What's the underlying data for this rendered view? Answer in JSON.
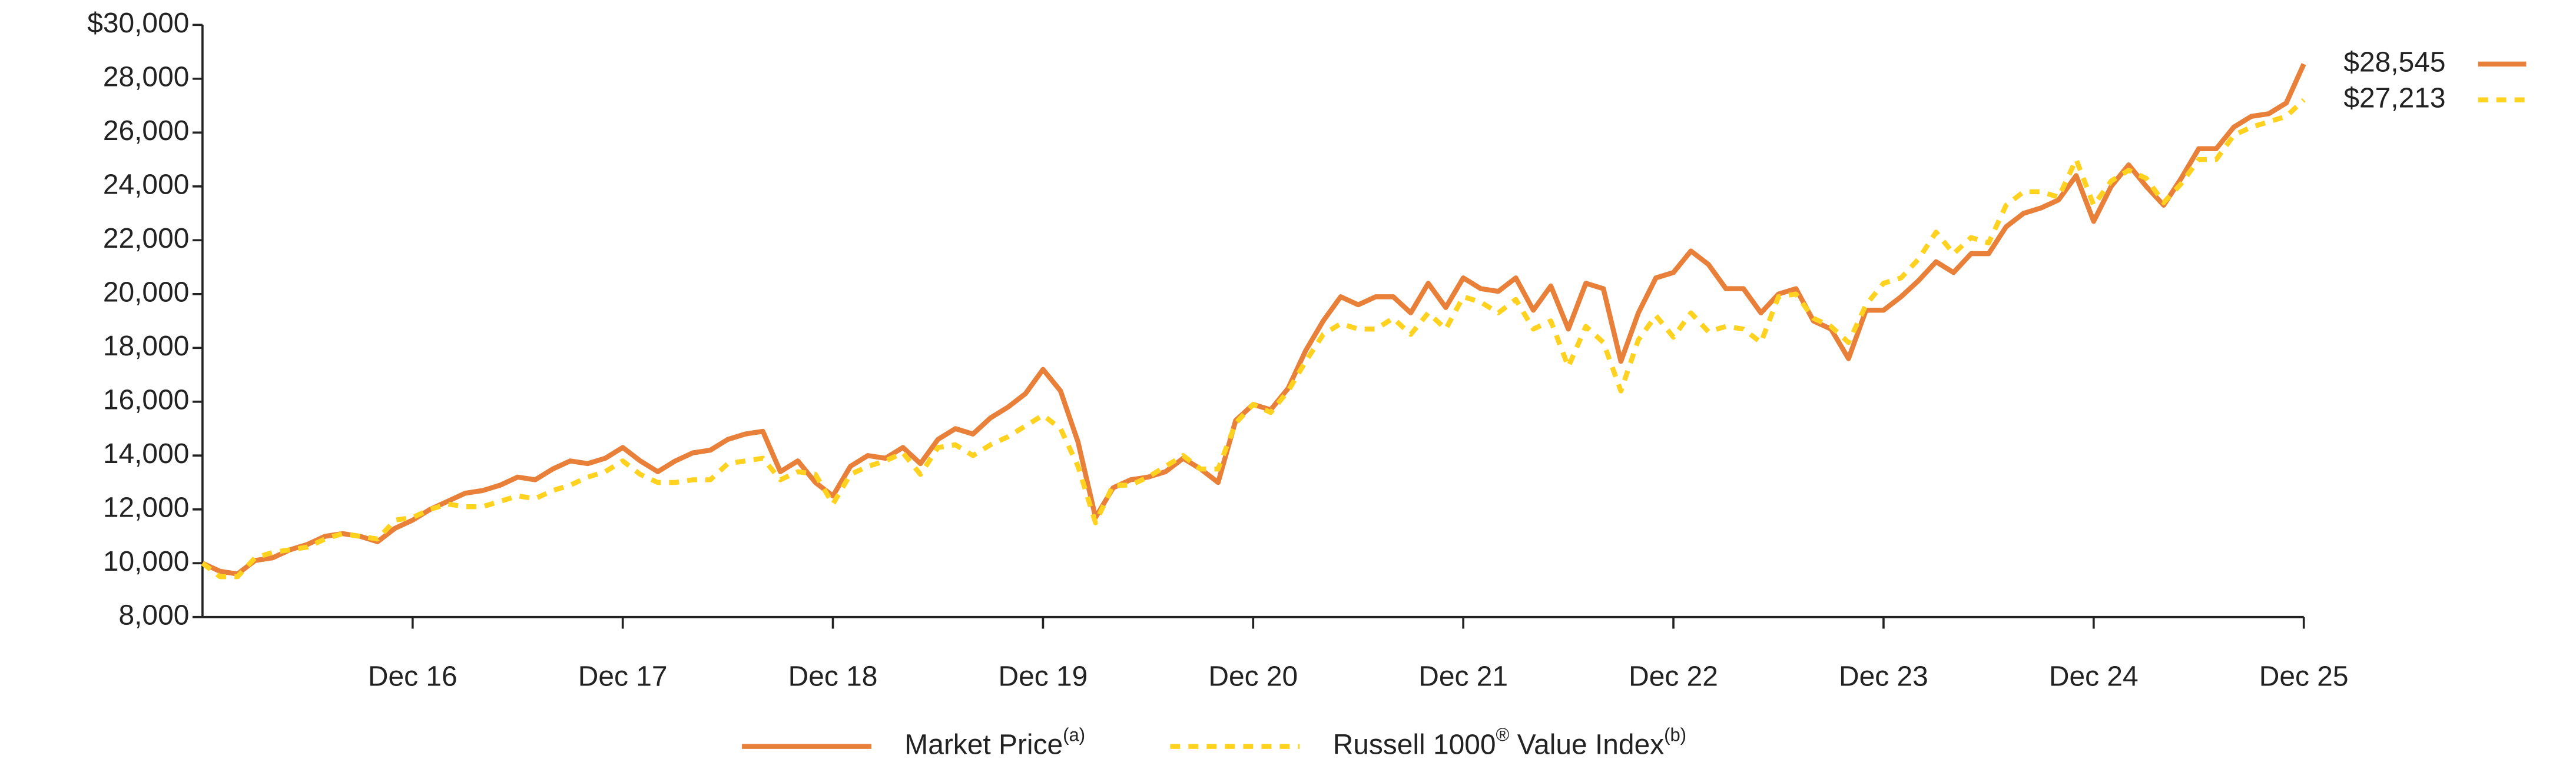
{
  "chart_data": {
    "type": "line",
    "categories": [
      null,
      null,
      null,
      null,
      null,
      null,
      null,
      null,
      null,
      null,
      null,
      null,
      "Dec 16",
      null,
      null,
      null,
      null,
      null,
      null,
      null,
      null,
      null,
      null,
      null,
      "Dec 17",
      null,
      null,
      null,
      null,
      null,
      null,
      null,
      null,
      null,
      null,
      null,
      "Dec 18",
      null,
      null,
      null,
      null,
      null,
      null,
      null,
      null,
      null,
      null,
      null,
      "Dec 19",
      null,
      null,
      null,
      null,
      null,
      null,
      null,
      null,
      null,
      null,
      null,
      "Dec 20",
      null,
      null,
      null,
      null,
      null,
      null,
      null,
      null,
      null,
      null,
      null,
      "Dec 21",
      null,
      null,
      null,
      null,
      null,
      null,
      null,
      null,
      null,
      null,
      null,
      "Dec 22",
      null,
      null,
      null,
      null,
      null,
      null,
      null,
      null,
      null,
      null,
      null,
      "Dec 23",
      null,
      null,
      null,
      null,
      null,
      null,
      null,
      null,
      null,
      null,
      null,
      "Dec 24",
      null,
      null,
      null,
      null,
      null,
      null,
      null,
      null,
      null,
      null,
      null,
      "Dec 25"
    ],
    "ylim": [
      8000,
      30000
    ],
    "yticks": [
      {
        "value": 8000,
        "label": "8,000"
      },
      {
        "value": 10000,
        "label": "10,000"
      },
      {
        "value": 12000,
        "label": "12,000"
      },
      {
        "value": 14000,
        "label": "14,000"
      },
      {
        "value": 16000,
        "label": "16,000"
      },
      {
        "value": 18000,
        "label": "18,000"
      },
      {
        "value": 20000,
        "label": "20,000"
      },
      {
        "value": 22000,
        "label": "22,000"
      },
      {
        "value": 24000,
        "label": "24,000"
      },
      {
        "value": 26000,
        "label": "26,000"
      },
      {
        "value": 28000,
        "label": "28,000"
      },
      {
        "value": 30000,
        "label": "$30,000"
      }
    ],
    "grid": false,
    "legend": "bottom",
    "series": [
      {
        "name": [
          {
            "text": "Market Price"
          },
          {
            "text": "(a)",
            "sup": true
          }
        ],
        "color": "#e8803a",
        "dash": false,
        "values": [
          10000,
          9700,
          9600,
          10100,
          10200,
          10500,
          10700,
          11000,
          11100,
          11000,
          10800,
          11300,
          11600,
          12000,
          12300,
          12600,
          12700,
          12900,
          13200,
          13100,
          13500,
          13800,
          13700,
          13900,
          14300,
          13800,
          13400,
          13800,
          14100,
          14200,
          14600,
          14800,
          14900,
          13400,
          13800,
          13000,
          12500,
          13600,
          14000,
          13900,
          14300,
          13700,
          14600,
          15000,
          14800,
          15400,
          15800,
          16300,
          17200,
          16400,
          14500,
          11700,
          12800,
          13100,
          13200,
          13400,
          13900,
          13500,
          13000,
          15300,
          15900,
          15700,
          16500,
          17900,
          19000,
          19900,
          19600,
          19900,
          19900,
          19300,
          20400,
          19500,
          20600,
          20200,
          20100,
          20600,
          19400,
          20300,
          18700,
          20400,
          20200,
          17500,
          19300,
          20600,
          20800,
          21600,
          21100,
          20200,
          20200,
          19300,
          20000,
          20200,
          19000,
          18700,
          17600,
          19400,
          19400,
          19900,
          20500,
          21200,
          20800,
          21500,
          21500,
          22500,
          23000,
          23200,
          23500,
          24400,
          22700,
          24000,
          24800,
          24000,
          23300,
          24300,
          25400,
          25400,
          26200,
          26600,
          26700,
          27100,
          28545
        ],
        "value_labels": [
          null,
          null,
          null,
          null,
          null,
          null,
          null,
          null,
          null,
          null,
          null,
          null,
          null,
          null,
          null,
          null,
          null,
          null,
          null,
          null,
          null,
          null,
          null,
          null,
          null,
          null,
          null,
          null,
          null,
          null,
          null,
          null,
          null,
          null,
          null,
          null,
          null,
          null,
          null,
          null,
          null,
          null,
          null,
          null,
          null,
          null,
          null,
          null,
          null,
          null,
          null,
          null,
          null,
          null,
          null,
          null,
          null,
          null,
          null,
          null,
          null,
          null,
          null,
          null,
          null,
          null,
          null,
          null,
          null,
          null,
          null,
          null,
          null,
          null,
          null,
          null,
          null,
          null,
          null,
          null,
          null,
          null,
          null,
          null,
          null,
          null,
          null,
          null,
          null,
          null,
          null,
          null,
          null,
          null,
          null,
          null,
          null,
          null,
          null,
          null,
          null,
          null,
          null,
          null,
          null,
          null,
          null,
          null,
          null,
          null,
          null,
          null,
          null,
          null,
          null,
          null,
          null,
          null,
          null,
          null,
          "$28,545"
        ]
      },
      {
        "name": [
          {
            "text": "Russell 1000"
          },
          {
            "text": "®",
            "sup": true
          },
          {
            "text": " Value Index"
          },
          {
            "text": "(b)",
            "sup": true
          }
        ],
        "color": "#ffd21f",
        "dash": true,
        "values": [
          10000,
          9500,
          9500,
          10200,
          10400,
          10500,
          10600,
          10900,
          11100,
          11000,
          10900,
          11600,
          11700,
          12000,
          12200,
          12100,
          12100,
          12300,
          12500,
          12400,
          12700,
          12900,
          13200,
          13400,
          13800,
          13300,
          13000,
          13000,
          13100,
          13100,
          13700,
          13800,
          13900,
          13100,
          13400,
          13300,
          12200,
          13300,
          13600,
          13800,
          14100,
          13300,
          14300,
          14400,
          14000,
          14400,
          14700,
          15100,
          15500,
          15000,
          13600,
          11500,
          12900,
          12900,
          13200,
          13600,
          14000,
          13500,
          13500,
          15200,
          15900,
          15600,
          16400,
          17500,
          18500,
          18900,
          18700,
          18700,
          19100,
          18500,
          19300,
          18700,
          19900,
          19700,
          19300,
          19800,
          18700,
          19000,
          17300,
          18800,
          18200,
          16400,
          18300,
          19200,
          18400,
          19300,
          18600,
          18800,
          18700,
          18200,
          19900,
          20000,
          19100,
          18800,
          18200,
          19600,
          20400,
          20600,
          21300,
          22300,
          21500,
          22100,
          21900,
          23300,
          23800,
          23800,
          23600,
          25000,
          23300,
          24200,
          24600,
          24300,
          23400,
          24100,
          25000,
          25000,
          25900,
          26200,
          26400,
          26600,
          27213
        ],
        "value_labels": [
          null,
          null,
          null,
          null,
          null,
          null,
          null,
          null,
          null,
          null,
          null,
          null,
          null,
          null,
          null,
          null,
          null,
          null,
          null,
          null,
          null,
          null,
          null,
          null,
          null,
          null,
          null,
          null,
          null,
          null,
          null,
          null,
          null,
          null,
          null,
          null,
          null,
          null,
          null,
          null,
          null,
          null,
          null,
          null,
          null,
          null,
          null,
          null,
          null,
          null,
          null,
          null,
          null,
          null,
          null,
          null,
          null,
          null,
          null,
          null,
          null,
          null,
          null,
          null,
          null,
          null,
          null,
          null,
          null,
          null,
          null,
          null,
          null,
          null,
          null,
          null,
          null,
          null,
          null,
          null,
          null,
          null,
          null,
          null,
          null,
          null,
          null,
          null,
          null,
          null,
          null,
          null,
          null,
          null,
          null,
          null,
          null,
          null,
          null,
          null,
          null,
          null,
          null,
          null,
          null,
          null,
          null,
          null,
          null,
          null,
          null,
          null,
          null,
          null,
          null,
          null,
          null,
          null,
          null,
          null,
          "$27,213"
        ]
      }
    ]
  }
}
